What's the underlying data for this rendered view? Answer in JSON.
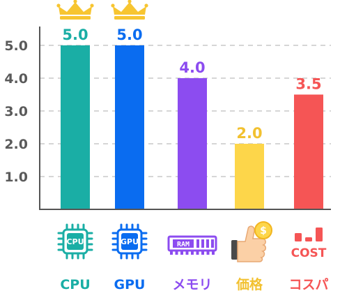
{
  "chart_data": {
    "type": "bar",
    "categories": [
      "CPU",
      "GPU",
      "メモリ",
      "価格",
      "コスパ"
    ],
    "values": [
      5.0,
      5.0,
      4.0,
      2.0,
      3.5
    ],
    "value_labels": [
      "5.0",
      "5.0",
      "4.0",
      "2.0",
      "3.5"
    ],
    "colors": [
      "#1aaea5",
      "#0a6cf0",
      "#8c4cf0",
      "#fdd64a",
      "#f55555"
    ],
    "label_colors": [
      "#1aaea5",
      "#0a6cf0",
      "#8c4cf0",
      "#f2c130",
      "#f55555"
    ],
    "crowned": [
      true,
      true,
      false,
      false,
      false
    ],
    "icons": [
      "cpu-chip-icon",
      "gpu-chip-icon",
      "ram-module-icon",
      "thumbs-up-coin-icon",
      "cost-bars-icon"
    ],
    "icon_texts": [
      "CPU",
      "GPU",
      "RAM",
      "$",
      "COST"
    ],
    "yticks": [
      "1.0",
      "2.0",
      "3.0",
      "4.0",
      "5.0"
    ],
    "ylim": [
      0,
      5.0
    ],
    "grid": true,
    "title": "",
    "xlabel": "",
    "ylabel": ""
  }
}
